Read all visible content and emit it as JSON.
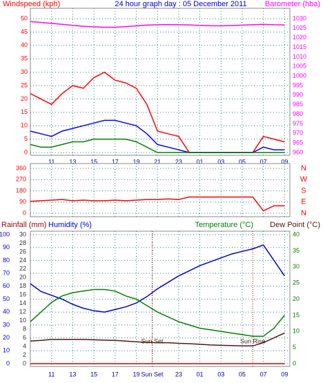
{
  "chart_data": [
    {
      "type": "line",
      "title": "24 hour graph day : 05 December 2011",
      "ylabel": "Windspeed (kph)",
      "y2label": "Barometer (hba)",
      "x": [
        9,
        10,
        11,
        12,
        13,
        14,
        15,
        16,
        17,
        18,
        19,
        20,
        21,
        22,
        23,
        24,
        25,
        26,
        27,
        28,
        29,
        30,
        31,
        32,
        33
      ],
      "xlim": [
        9,
        33.5
      ],
      "xticks": [
        11,
        13,
        15,
        17,
        19,
        21,
        23,
        {
          "value": 25,
          "label": "01"
        },
        {
          "value": 27,
          "label": "03"
        },
        {
          "value": 29,
          "label": "05"
        },
        {
          "value": 31,
          "label": "07"
        },
        {
          "value": 33,
          "label": "09"
        }
      ],
      "ylim": [
        0,
        50
      ],
      "yticks": [
        0,
        5,
        10,
        15,
        20,
        25,
        30,
        35,
        40,
        45,
        50
      ],
      "y2lim": [
        960,
        1030
      ],
      "y2ticks": [
        960,
        965,
        970,
        975,
        980,
        985,
        990,
        995,
        1000,
        1005,
        1010,
        1015,
        1020,
        1025,
        1030
      ],
      "grid": true,
      "series": [
        {
          "color": "#ff0000",
          "values": [
            22,
            20,
            18,
            22,
            25,
            24,
            28,
            30,
            27,
            26,
            24,
            18,
            8,
            7,
            6,
            0,
            0,
            0,
            0,
            0,
            0,
            0,
            6,
            5,
            4
          ]
        },
        {
          "color": "#0000ff",
          "values": [
            8,
            7,
            6,
            8,
            9,
            10,
            11,
            12,
            12,
            11,
            10,
            7,
            3,
            2,
            1,
            0,
            0,
            0,
            0,
            0,
            0,
            0,
            2,
            1,
            1
          ]
        },
        {
          "color": "#008000",
          "values": [
            3,
            2,
            2,
            3,
            4,
            4,
            5,
            5,
            5,
            5,
            4,
            2,
            0,
            0,
            0,
            0,
            0,
            0,
            0,
            0,
            0,
            0,
            0,
            0,
            0
          ]
        },
        {
          "color": "#ff00ff",
          "axis": "y2",
          "values": [
            1028.5,
            1028,
            1027.5,
            1027,
            1026.5,
            1026,
            1025.7,
            1025.5,
            1025.5,
            1025.8,
            1026.2,
            1026.6,
            1026.8,
            1026.9,
            1026.8,
            1026.7,
            1026.5,
            1026.3,
            1026.2,
            1026.4,
            1026.6,
            1026.8,
            1027,
            1026.8,
            1026.7
          ]
        }
      ]
    },
    {
      "type": "line",
      "x": [
        9,
        10,
        11,
        12,
        13,
        14,
        15,
        16,
        17,
        18,
        19,
        20,
        21,
        22,
        23,
        24,
        25,
        26,
        27,
        28,
        29,
        30,
        31,
        32,
        33
      ],
      "xlim": [
        9,
        33.5
      ],
      "ylim": [
        0,
        360
      ],
      "yticks": [
        0,
        90,
        180,
        270,
        360
      ],
      "y2lim": [
        0,
        360
      ],
      "y2ticks": [
        {
          "value": 0,
          "label": "N"
        },
        {
          "value": 90,
          "label": "E"
        },
        {
          "value": 180,
          "label": "S"
        },
        {
          "value": 270,
          "label": "W"
        },
        {
          "value": 360,
          "label": "N"
        }
      ],
      "grid": true,
      "series": [
        {
          "color": "#ff0000",
          "values": [
            95,
            100,
            105,
            110,
            100,
            105,
            100,
            100,
            105,
            100,
            105,
            110,
            110,
            115,
            110,
            130,
            130,
            130,
            130,
            130,
            130,
            130,
            20,
            60,
            60
          ]
        }
      ]
    },
    {
      "type": "line",
      "ylabel": "Humidity (%)",
      "y3label": "Rainfall (mm)",
      "y2labels": [
        "Temperature (°C)",
        "Dew Point (°C)"
      ],
      "x": [
        9,
        10,
        11,
        12,
        13,
        14,
        15,
        16,
        17,
        18,
        19,
        20,
        21,
        22,
        23,
        24,
        25,
        26,
        27,
        28,
        29,
        30,
        31,
        32,
        33
      ],
      "xlim": [
        9,
        33.5
      ],
      "xticks": [
        11,
        13,
        15,
        17,
        19,
        {
          "value": 20.5,
          "label": "Sun Set"
        },
        23,
        {
          "value": 25,
          "label": "01"
        },
        {
          "value": 27,
          "label": "03"
        },
        {
          "value": 29,
          "label": "05"
        },
        {
          "value": 31,
          "label": "07"
        },
        {
          "value": 33,
          "label": "09"
        }
      ],
      "ylim": [
        0,
        100
      ],
      "yticks": [
        0,
        10,
        20,
        30,
        40,
        50,
        60,
        70,
        80,
        90,
        100
      ],
      "y3lim": [
        0,
        30
      ],
      "y3ticks": [
        0,
        2,
        4,
        6,
        8,
        10,
        12,
        14,
        16,
        18,
        20,
        22,
        24,
        26,
        28,
        30
      ],
      "y2lim": [
        0,
        40
      ],
      "y2ticks": [
        0,
        5,
        10,
        15,
        20,
        25,
        30,
        35,
        40
      ],
      "grid": true,
      "annotations": [
        {
          "x": 20.5,
          "text": "Sun Set"
        },
        {
          "x": 30,
          "text": "Sun Rise"
        }
      ],
      "series": [
        {
          "color": "#0000cc",
          "values": [
            62,
            56,
            53,
            50,
            46,
            43,
            41,
            40,
            42,
            44,
            47,
            52,
            58,
            63,
            68,
            72,
            76,
            79,
            82,
            85,
            87,
            89,
            92,
            80,
            68
          ]
        },
        {
          "color": "#008000",
          "axis": "y2",
          "values": [
            13,
            16,
            19,
            21,
            22,
            22.5,
            23,
            23,
            22.5,
            21,
            20,
            18,
            16,
            14.5,
            13,
            12,
            11,
            10.5,
            10,
            9.5,
            9,
            8.5,
            8.5,
            11,
            15
          ]
        },
        {
          "color": "#4a1a10",
          "axis": "y2",
          "values": [
            7,
            7.2,
            7.5,
            7.5,
            7.5,
            7.5,
            7.4,
            7.3,
            7.2,
            7,
            6.8,
            6.6,
            6.5,
            6.5,
            6.3,
            6.2,
            6,
            5.8,
            5.7,
            5.6,
            5.5,
            5.5,
            6.5,
            8,
            9.5
          ]
        },
        {
          "color": "#cc0000",
          "axis": "y3",
          "values": [
            0,
            0,
            0,
            0,
            0,
            0,
            0,
            0,
            0,
            0,
            0,
            0,
            0,
            0,
            0,
            0,
            0,
            0,
            0,
            0,
            0,
            0,
            0,
            0,
            0
          ]
        }
      ]
    }
  ]
}
